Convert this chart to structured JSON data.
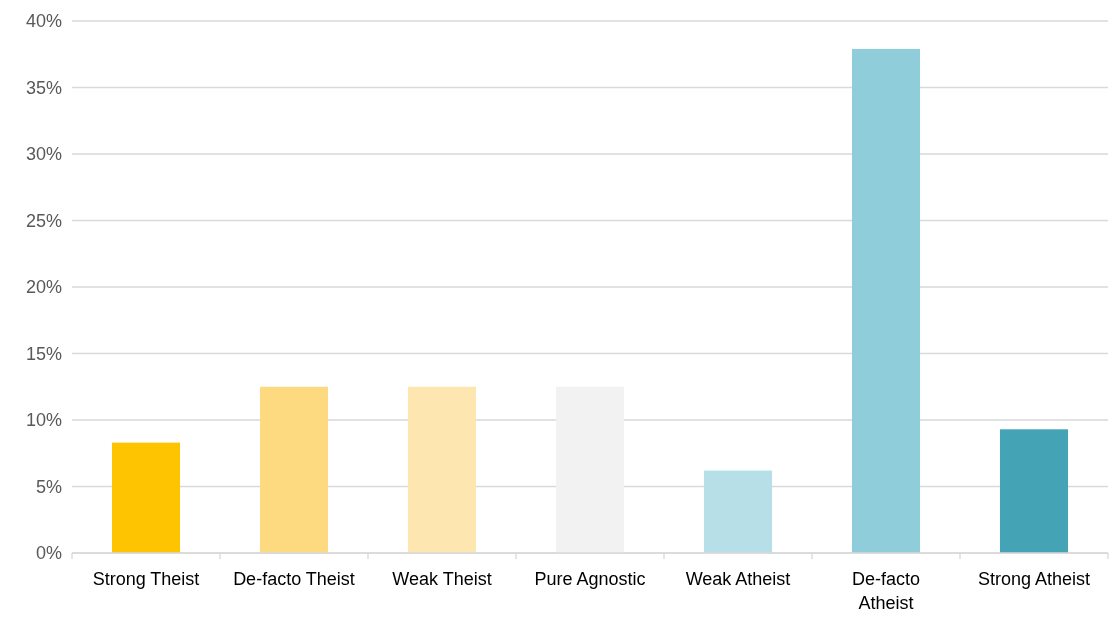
{
  "chart_data": {
    "type": "bar",
    "categories": [
      "Strong Theist",
      "De-facto Theist",
      "Weak Theist",
      "Pure Agnostic",
      "Weak Atheist",
      "De-facto Atheist",
      "Strong Atheist"
    ],
    "values": [
      8.3,
      12.5,
      12.5,
      12.5,
      6.2,
      37.9,
      9.3
    ],
    "colors": [
      "#fec301",
      "#fdd980",
      "#fde6b0",
      "#f2f2f2",
      "#b6dfe7",
      "#90cddb",
      "#45a3b6"
    ],
    "ylim": [
      0,
      40
    ],
    "yticks": [
      {
        "value": 0,
        "label": "0%"
      },
      {
        "value": 5,
        "label": "5%"
      },
      {
        "value": 10,
        "label": "10%"
      },
      {
        "value": 15,
        "label": "15%"
      },
      {
        "value": 20,
        "label": "20%"
      },
      {
        "value": 25,
        "label": "25%"
      },
      {
        "value": 30,
        "label": "30%"
      },
      {
        "value": 35,
        "label": "35%"
      },
      {
        "value": 40,
        "label": "40%"
      }
    ],
    "grid": "y"
  }
}
